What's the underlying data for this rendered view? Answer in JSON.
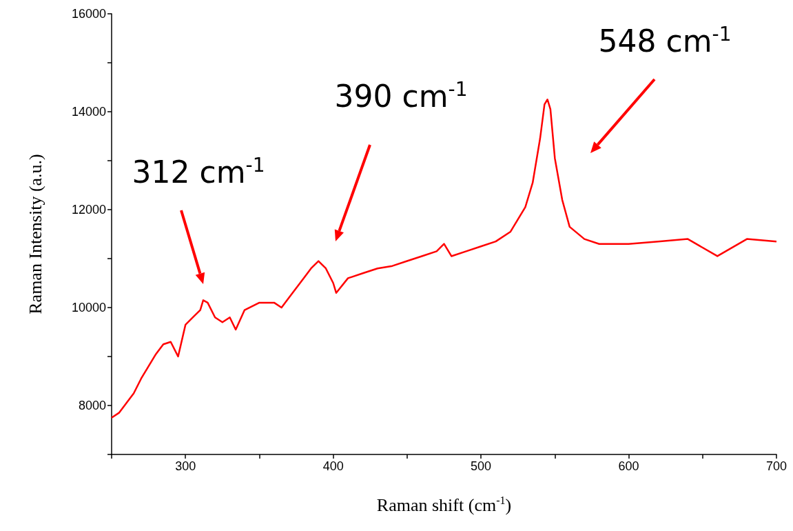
{
  "chart_data": {
    "type": "line",
    "xlabel": "Raman shift (cm$^{-1}$)",
    "ylabel": "Raman Intensity (a.u.)",
    "x": [
      250,
      255,
      260,
      265,
      270,
      275,
      280,
      285,
      290,
      295,
      300,
      305,
      310,
      312,
      315,
      320,
      325,
      330,
      334,
      340,
      350,
      360,
      365,
      370,
      380,
      385,
      390,
      395,
      400,
      402,
      410,
      420,
      430,
      440,
      450,
      460,
      470,
      475,
      480,
      490,
      500,
      510,
      520,
      525,
      530,
      535,
      540,
      543,
      545,
      547,
      550,
      555,
      560,
      570,
      580,
      600,
      620,
      640,
      660,
      680,
      700
    ],
    "series": [
      {
        "color": "#ff0000",
        "values": [
          7750,
          7850,
          8050,
          8250,
          8550,
          8800,
          9050,
          9250,
          9300,
          9000,
          9650,
          9800,
          9950,
          10150,
          10100,
          9800,
          9700,
          9800,
          9550,
          9950,
          10100,
          10100,
          10000,
          10200,
          10600,
          10800,
          10950,
          10800,
          10500,
          10300,
          10600,
          10700,
          10800,
          10850,
          10950,
          11050,
          11150,
          11300,
          11050,
          11150,
          11250,
          11350,
          11550,
          11800,
          12050,
          12550,
          13450,
          14150,
          14250,
          14050,
          13050,
          12200,
          11650,
          11400,
          11300,
          11300,
          11350,
          11400,
          11050,
          11400,
          11350
        ]
      }
    ],
    "xlim": [
      250,
      700
    ],
    "xticks": [
      {
        "value": 250,
        "label": null
      },
      300,
      {
        "value": 350,
        "label": null
      },
      400,
      {
        "value": 450,
        "label": null
      },
      500,
      {
        "value": 550,
        "label": null
      },
      600,
      {
        "value": 650,
        "label": null
      },
      700
    ],
    "ylim": [
      7000,
      16000
    ],
    "yticks": [
      {
        "value": 7000,
        "label": null
      },
      8000,
      {
        "value": 9000,
        "label": null
      },
      10000,
      {
        "value": 11000,
        "label": null
      },
      12000,
      {
        "value": 13000,
        "label": null
      },
      14000,
      {
        "value": 15000,
        "label": null
      },
      16000
    ],
    "grid": false,
    "annotations": [
      "312 cm$^{-1}$",
      "390 cm$^{-1}$",
      "548 cm$^{-1}$"
    ]
  }
}
